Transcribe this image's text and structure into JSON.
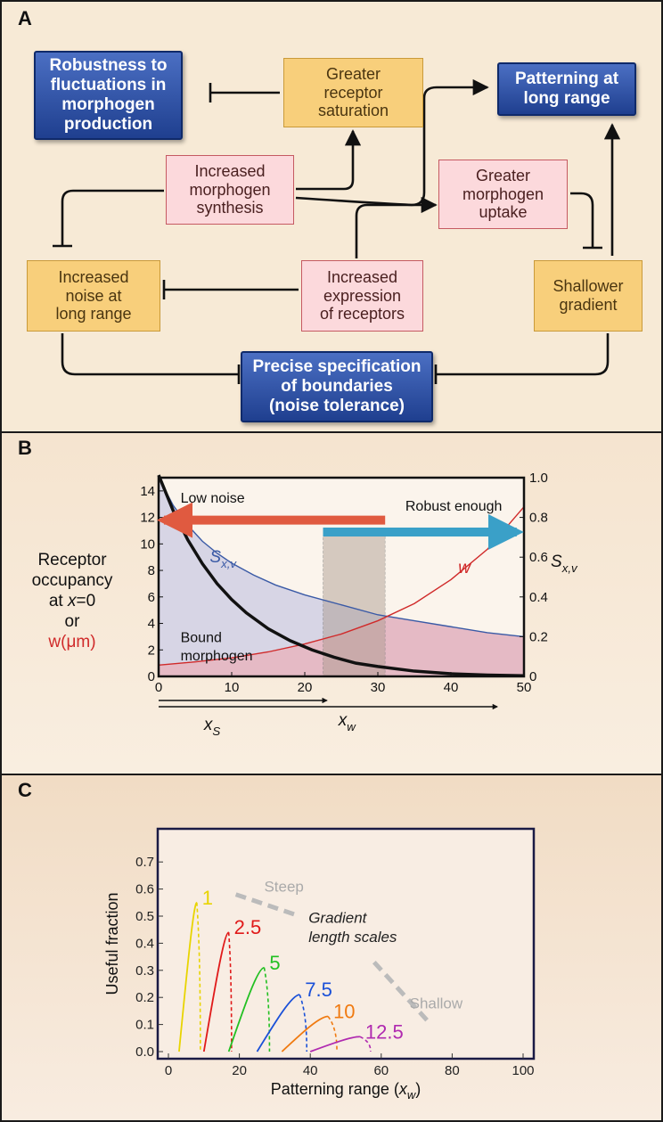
{
  "panel_a": {
    "letter": "A",
    "boxes": {
      "robustness": "Robustness to\nfluctuations in\nmorphogen\nproduction",
      "saturation": "Greater\nreceptor\nsaturation",
      "long_range": "Patterning at\nlong range",
      "synthesis": "Increased\nmorphogen\nsynthesis",
      "uptake": "Greater\nmorphogen\nuptake",
      "noise": "Increased\nnoise at\nlong range",
      "receptors": "Increased\nexpression\nof receptors",
      "shallower": "Shallower\ngradient",
      "precise": "Precise specification\nof boundaries\n(noise tolerance)"
    },
    "colors": {
      "yellow": "#f8cf7b",
      "pink": "#fcd9dc",
      "blue": "#2a4ea6"
    }
  },
  "panel_b": {
    "letter": "B",
    "ylabel_left_1": "Receptor",
    "ylabel_left_2": "occupancy",
    "ylabel_left_3a": "at ",
    "ylabel_left_3b": "x",
    "ylabel_left_3c": "=0",
    "ylabel_left_4": "or",
    "ylabel_left_5": "w(μm)",
    "ylabel_right": "S",
    "ylabel_right_sub": "x,v",
    "annotations": {
      "low_noise": "Low noise",
      "robust_enough": "Robust enough",
      "sxv": "S",
      "sxv_sub": "x,v",
      "w": "w",
      "bound_1": "Bound",
      "bound_2": "morphogen",
      "xs": "x",
      "xs_sub": "S",
      "xw": "x",
      "xw_sub": "w"
    }
  },
  "panel_c": {
    "letter": "C",
    "annotations": {
      "steep": "Steep",
      "shallow": "Shallow",
      "gradient_1": "Gradient",
      "gradient_2": "length scales"
    },
    "xlabel_main": "Patterning range (",
    "xlabel_var": "x",
    "xlabel_sub": "w",
    "xlabel_close": ")"
  },
  "chart_data": [
    {
      "type": "line",
      "panel": "B",
      "xlim": [
        0,
        50
      ],
      "ylim_left": [
        0,
        15
      ],
      "ylim_right": [
        0,
        1.0
      ],
      "x_ticks": [
        "0",
        "10",
        "20",
        "30",
        "40",
        "50"
      ],
      "y_ticks_left": [
        "0",
        "2",
        "4",
        "6",
        "8",
        "10",
        "12",
        "14"
      ],
      "y_ticks_right": [
        "0",
        "0.2",
        "0.4",
        "0.6",
        "0.8",
        "1.0"
      ],
      "series": [
        {
          "name": "Bound morphogen",
          "axis": "left",
          "color": "#111111",
          "x": [
            0,
            2,
            4,
            6,
            8,
            10,
            12,
            15,
            18,
            21,
            24,
            27,
            30,
            35,
            40,
            45,
            50
          ],
          "y": [
            15.2,
            12.5,
            10.3,
            8.5,
            7.0,
            5.8,
            4.8,
            3.6,
            2.7,
            2.0,
            1.45,
            1.0,
            0.75,
            0.4,
            0.2,
            0.1,
            0.05
          ]
        },
        {
          "name": "w",
          "axis": "left",
          "color": "#d02a2a",
          "x": [
            0,
            5,
            10,
            15,
            20,
            25,
            30,
            35,
            40,
            45,
            50
          ],
          "y": [
            0.85,
            1.1,
            1.4,
            1.85,
            2.45,
            3.2,
            4.2,
            5.5,
            7.3,
            9.6,
            12.8
          ]
        },
        {
          "name": "Sx,v",
          "axis": "right",
          "color": "#3a5aa6",
          "x": [
            0,
            2,
            4,
            6,
            8,
            10,
            13,
            16,
            20,
            25,
            30,
            35,
            40,
            45,
            50
          ],
          "y": [
            1.0,
            0.86,
            0.76,
            0.68,
            0.62,
            0.57,
            0.51,
            0.46,
            0.41,
            0.36,
            0.31,
            0.28,
            0.25,
            0.22,
            0.2
          ]
        }
      ],
      "highlight_x": [
        22.5,
        31
      ],
      "arrows": [
        {
          "label": "Low noise",
          "from": 31,
          "to": 0,
          "color": "#e05a40"
        },
        {
          "label": "Robust enough",
          "from": 22.5,
          "to": 49,
          "color": "#3aa0c8"
        }
      ],
      "bottom_arrows": [
        {
          "label": "xS",
          "to": 23
        },
        {
          "label": "xw",
          "to": 49
        }
      ]
    },
    {
      "type": "line",
      "panel": "C",
      "ylabel": "Useful fraction",
      "xlim": [
        0,
        100
      ],
      "ylim": [
        0,
        0.75
      ],
      "x_ticks": [
        "0",
        "20",
        "40",
        "60",
        "80",
        "100"
      ],
      "y_ticks": [
        "0.0",
        "0.1",
        "0.2",
        "0.3",
        "0.4",
        "0.5",
        "0.6",
        "0.7"
      ],
      "series": [
        {
          "name": "1",
          "color": "#e8d400",
          "start": 3,
          "peak_x": 8,
          "peak_y": 0.55,
          "end": 9
        },
        {
          "name": "2.5",
          "color": "#e01a1a",
          "start": 10,
          "peak_x": 17,
          "peak_y": 0.44,
          "end": 17.8
        },
        {
          "name": "5",
          "color": "#22c022",
          "start": 17,
          "peak_x": 27,
          "peak_y": 0.31,
          "end": 28.5
        },
        {
          "name": "7.5",
          "color": "#1a50d8",
          "start": 25,
          "peak_x": 37,
          "peak_y": 0.21,
          "end": 39
        },
        {
          "name": "10",
          "color": "#f07a10",
          "start": 32,
          "peak_x": 45,
          "peak_y": 0.13,
          "end": 47.5
        },
        {
          "name": "12.5",
          "color": "#b02ab0",
          "start": 40,
          "peak_x": 54,
          "peak_y": 0.055,
          "end": 57
        }
      ]
    }
  ]
}
